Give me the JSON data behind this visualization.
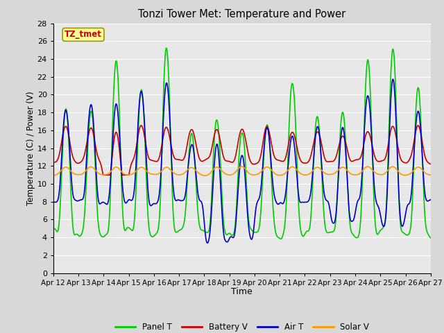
{
  "title": "Tonzi Tower Met: Temperature and Power",
  "xlabel": "Time",
  "ylabel": "Temperature (C) / Power (V)",
  "xlim": [
    0,
    360
  ],
  "ylim": [
    0,
    28
  ],
  "yticks": [
    0,
    2,
    4,
    6,
    8,
    10,
    12,
    14,
    16,
    18,
    20,
    22,
    24,
    26,
    28
  ],
  "xtick_labels": [
    "Apr 12",
    "Apr 13",
    "Apr 14",
    "Apr 15",
    "Apr 16",
    "Apr 17",
    "Apr 18",
    "Apr 19",
    "Apr 20",
    "Apr 21",
    "Apr 22",
    "Apr 23",
    "Apr 24",
    "Apr 25",
    "Apr 26",
    "Apr 27"
  ],
  "xtick_positions": [
    0,
    24,
    48,
    72,
    96,
    120,
    144,
    168,
    192,
    216,
    240,
    264,
    288,
    312,
    336,
    360
  ],
  "colors": {
    "panel_t": "#00CC00",
    "battery_v": "#CC0000",
    "air_t": "#0000CC",
    "solar_v": "#FF9900"
  },
  "legend": [
    "Panel T",
    "Battery V",
    "Air T",
    "Solar V"
  ],
  "annotation_text": "TZ_tmet",
  "annotation_color": "#CC0000",
  "annotation_bg": "#FFFF99",
  "bg_color": "#D8D8D8",
  "plot_bg": "#E8E8E8",
  "grid_color": "#FFFFFF",
  "linewidth": 1.2
}
